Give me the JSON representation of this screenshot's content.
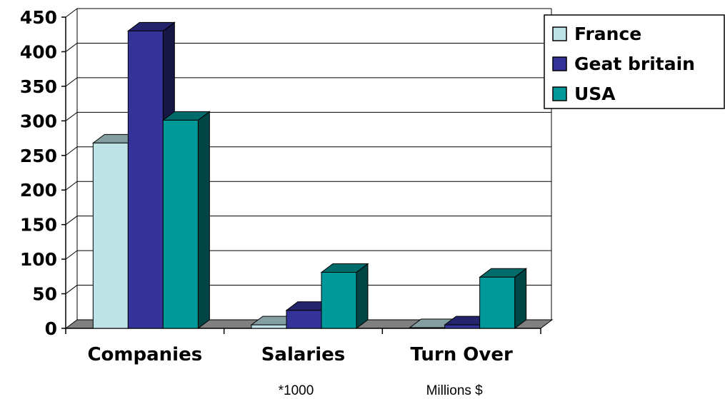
{
  "chart_data": {
    "type": "bar",
    "categories": [
      "Companies",
      "Salaries",
      "Turn Over"
    ],
    "category_notes": [
      "",
      "*1000",
      "Millions $"
    ],
    "series": [
      {
        "name": "France",
        "values": [
          268,
          5,
          1
        ],
        "color": "#bde3e6"
      },
      {
        "name": "Geat britain",
        "values": [
          430,
          26,
          5
        ],
        "color": "#33339a"
      },
      {
        "name": "USA",
        "values": [
          301,
          81,
          74
        ],
        "color": "#009999"
      }
    ],
    "yticks": [
      0,
      50,
      100,
      150,
      200,
      250,
      300,
      350,
      400,
      450
    ],
    "ylim": [
      0,
      450
    ],
    "grid": true,
    "legend_position": "top-right",
    "title": "",
    "xlabel": "",
    "ylabel": ""
  }
}
